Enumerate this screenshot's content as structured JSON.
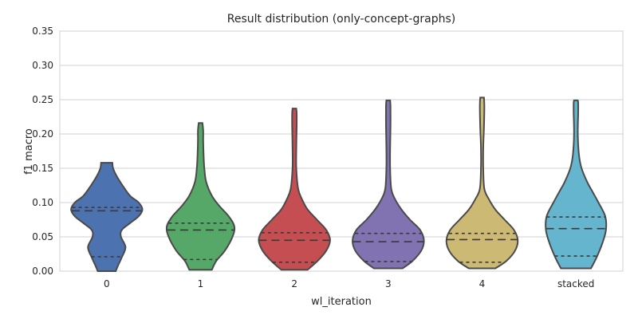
{
  "chart_data": {
    "type": "violin",
    "title": "Result distribution (only-concept-graphs)",
    "xlabel": "wl_iteration",
    "ylabel": "f1 macro",
    "ylim": [
      0,
      0.35
    ],
    "yticks": [
      "0.00",
      "0.05",
      "0.10",
      "0.15",
      "0.20",
      "0.25",
      "0.30",
      "0.35"
    ],
    "grid": true,
    "inner": "quartile",
    "cut": 0,
    "categories": [
      "0",
      "1",
      "2",
      "3",
      "4",
      "stacked"
    ],
    "series": [
      {
        "category": "0",
        "color": "#4c72b0",
        "min": 0.0,
        "max": 0.158,
        "q1": 0.021,
        "median": 0.088,
        "q3": 0.093,
        "density": [
          [
            0.0,
            0.24
          ],
          [
            0.008,
            0.3
          ],
          [
            0.02,
            0.4
          ],
          [
            0.035,
            0.5
          ],
          [
            0.05,
            0.38
          ],
          [
            0.06,
            0.4
          ],
          [
            0.07,
            0.62
          ],
          [
            0.08,
            0.85
          ],
          [
            0.09,
            0.95
          ],
          [
            0.1,
            0.85
          ],
          [
            0.11,
            0.62
          ],
          [
            0.125,
            0.42
          ],
          [
            0.14,
            0.25
          ],
          [
            0.15,
            0.17
          ],
          [
            0.158,
            0.15
          ]
        ]
      },
      {
        "category": "1",
        "color": "#55a868",
        "min": 0.002,
        "max": 0.216,
        "q1": 0.017,
        "median": 0.06,
        "q3": 0.07,
        "density": [
          [
            0.002,
            0.3
          ],
          [
            0.015,
            0.42
          ],
          [
            0.03,
            0.65
          ],
          [
            0.05,
            0.85
          ],
          [
            0.065,
            0.9
          ],
          [
            0.08,
            0.75
          ],
          [
            0.095,
            0.5
          ],
          [
            0.11,
            0.3
          ],
          [
            0.13,
            0.15
          ],
          [
            0.15,
            0.1
          ],
          [
            0.17,
            0.08
          ],
          [
            0.19,
            0.07
          ],
          [
            0.205,
            0.07
          ],
          [
            0.216,
            0.05
          ]
        ]
      },
      {
        "category": "2",
        "color": "#c44e52",
        "min": 0.002,
        "max": 0.237,
        "q1": 0.013,
        "median": 0.045,
        "q3": 0.056,
        "density": [
          [
            0.002,
            0.35
          ],
          [
            0.015,
            0.62
          ],
          [
            0.03,
            0.85
          ],
          [
            0.045,
            0.95
          ],
          [
            0.06,
            0.85
          ],
          [
            0.075,
            0.6
          ],
          [
            0.09,
            0.35
          ],
          [
            0.105,
            0.2
          ],
          [
            0.12,
            0.1
          ],
          [
            0.15,
            0.05
          ],
          [
            0.18,
            0.05
          ],
          [
            0.21,
            0.06
          ],
          [
            0.23,
            0.06
          ],
          [
            0.237,
            0.05
          ]
        ]
      },
      {
        "category": "3",
        "color": "#8172b2",
        "min": 0.004,
        "max": 0.249,
        "q1": 0.014,
        "median": 0.043,
        "q3": 0.055,
        "density": [
          [
            0.004,
            0.38
          ],
          [
            0.015,
            0.65
          ],
          [
            0.03,
            0.88
          ],
          [
            0.045,
            0.95
          ],
          [
            0.06,
            0.85
          ],
          [
            0.075,
            0.58
          ],
          [
            0.09,
            0.35
          ],
          [
            0.105,
            0.18
          ],
          [
            0.12,
            0.08
          ],
          [
            0.15,
            0.05
          ],
          [
            0.18,
            0.05
          ],
          [
            0.21,
            0.06
          ],
          [
            0.24,
            0.06
          ],
          [
            0.249,
            0.05
          ]
        ]
      },
      {
        "category": "4",
        "color": "#ccb974",
        "min": 0.004,
        "max": 0.253,
        "q1": 0.013,
        "median": 0.046,
        "q3": 0.055,
        "density": [
          [
            0.004,
            0.35
          ],
          [
            0.015,
            0.65
          ],
          [
            0.03,
            0.88
          ],
          [
            0.045,
            0.95
          ],
          [
            0.06,
            0.85
          ],
          [
            0.075,
            0.6
          ],
          [
            0.09,
            0.35
          ],
          [
            0.105,
            0.18
          ],
          [
            0.12,
            0.06
          ],
          [
            0.15,
            0.03
          ],
          [
            0.18,
            0.03
          ],
          [
            0.21,
            0.05
          ],
          [
            0.24,
            0.06
          ],
          [
            0.253,
            0.05
          ]
        ]
      },
      {
        "category": "stacked",
        "color": "#64b5cd",
        "min": 0.004,
        "max": 0.249,
        "q1": 0.022,
        "median": 0.062,
        "q3": 0.079,
        "density": [
          [
            0.004,
            0.4
          ],
          [
            0.02,
            0.55
          ],
          [
            0.04,
            0.7
          ],
          [
            0.06,
            0.8
          ],
          [
            0.08,
            0.78
          ],
          [
            0.1,
            0.6
          ],
          [
            0.115,
            0.45
          ],
          [
            0.13,
            0.3
          ],
          [
            0.15,
            0.15
          ],
          [
            0.17,
            0.08
          ],
          [
            0.2,
            0.05
          ],
          [
            0.23,
            0.06
          ],
          [
            0.245,
            0.06
          ],
          [
            0.249,
            0.05
          ]
        ]
      }
    ]
  }
}
